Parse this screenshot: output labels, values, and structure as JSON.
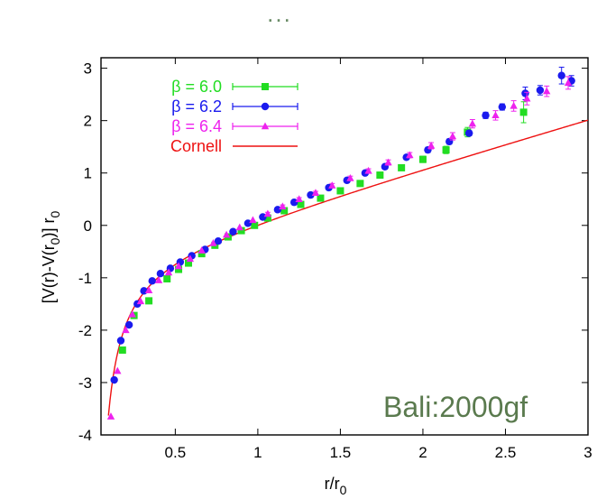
{
  "header": {
    "ellipsis": "..."
  },
  "watermark": "Bali:2000gf",
  "colors": {
    "beta60": "#22dd22",
    "beta62": "#1a1aee",
    "beta64": "#ee22ee",
    "cornell": "#ee1111",
    "watermark": "#5a7a4e"
  },
  "chart_data": {
    "type": "scatter",
    "title": "",
    "xlabel": "r/r",
    "xlabel_sub": "0",
    "ylabel_main": "[V(r)-V(r",
    "ylabel_sub": "0",
    "ylabel_tail": ")] r",
    "ylabel_tail_sub": "0",
    "xlim": [
      0.05,
      3.0
    ],
    "ylim": [
      -4,
      3.2
    ],
    "xticks": [
      0.5,
      1,
      1.5,
      2,
      2.5,
      3
    ],
    "xtick_labels": [
      "0.5",
      "1",
      "1.5",
      "2",
      "2.5",
      "3"
    ],
    "yticks": [
      -4,
      -3,
      -2,
      -1,
      0,
      1,
      2,
      3
    ],
    "ytick_labels": [
      "-4",
      "-3",
      "-2",
      "-1",
      "0",
      "1",
      "2",
      "3"
    ],
    "legend_position": "top-left",
    "series": [
      {
        "name": "β = 6.0",
        "marker": "square",
        "color": "#22dd22",
        "x": [
          0.18,
          0.25,
          0.34,
          0.45,
          0.52,
          0.58,
          0.66,
          0.74,
          0.82,
          0.9,
          0.98,
          1.06,
          1.16,
          1.26,
          1.38,
          1.5,
          1.62,
          1.74,
          1.87,
          2.0,
          2.14,
          2.27,
          2.61
        ],
        "y": [
          -2.38,
          -1.72,
          -1.44,
          -1.02,
          -0.84,
          -0.72,
          -0.54,
          -0.38,
          -0.22,
          -0.1,
          0.0,
          0.14,
          0.28,
          0.4,
          0.52,
          0.66,
          0.8,
          0.96,
          1.1,
          1.26,
          1.44,
          1.78,
          2.16
        ],
        "err": [
          0.02,
          0.02,
          0.02,
          0.02,
          0.02,
          0.02,
          0.02,
          0.02,
          0.02,
          0.02,
          0.02,
          0.03,
          0.03,
          0.03,
          0.03,
          0.04,
          0.04,
          0.05,
          0.05,
          0.06,
          0.07,
          0.09,
          0.2
        ]
      },
      {
        "name": "β = 6.2",
        "marker": "circle",
        "color": "#1a1aee",
        "x": [
          0.13,
          0.17,
          0.22,
          0.27,
          0.31,
          0.36,
          0.41,
          0.47,
          0.53,
          0.6,
          0.68,
          0.76,
          0.85,
          0.94,
          1.03,
          1.12,
          1.22,
          1.32,
          1.43,
          1.54,
          1.65,
          1.77,
          1.9,
          2.03,
          2.16,
          2.28,
          2.38,
          2.48,
          2.62,
          2.71,
          2.84,
          2.9
        ],
        "y": [
          -2.95,
          -2.2,
          -1.9,
          -1.5,
          -1.25,
          -1.06,
          -0.92,
          -0.82,
          -0.7,
          -0.58,
          -0.46,
          -0.3,
          -0.12,
          0.04,
          0.16,
          0.3,
          0.44,
          0.58,
          0.72,
          0.86,
          1.0,
          1.12,
          1.3,
          1.44,
          1.6,
          1.76,
          2.1,
          2.26,
          2.52,
          2.58,
          2.86,
          2.76
        ],
        "err": [
          0.02,
          0.02,
          0.02,
          0.02,
          0.02,
          0.02,
          0.02,
          0.02,
          0.02,
          0.02,
          0.02,
          0.02,
          0.02,
          0.02,
          0.02,
          0.02,
          0.02,
          0.03,
          0.03,
          0.03,
          0.03,
          0.04,
          0.04,
          0.05,
          0.05,
          0.05,
          0.06,
          0.06,
          0.12,
          0.09,
          0.16,
          0.1
        ]
      },
      {
        "name": "β = 6.4",
        "marker": "triangle",
        "color": "#ee22ee",
        "x": [
          0.11,
          0.15,
          0.2,
          0.24,
          0.29,
          0.34,
          0.4,
          0.46,
          0.52,
          0.59,
          0.66,
          0.73,
          0.81,
          0.89,
          0.97,
          1.06,
          1.15,
          1.25,
          1.35,
          1.45,
          1.56,
          1.67,
          1.79,
          1.92,
          2.05,
          2.18,
          2.3,
          2.44,
          2.55,
          2.63,
          2.75,
          2.88
        ],
        "y": [
          -3.65,
          -2.78,
          -2.0,
          -1.7,
          -1.45,
          -1.24,
          -1.05,
          -0.9,
          -0.78,
          -0.64,
          -0.48,
          -0.34,
          -0.18,
          -0.04,
          0.1,
          0.22,
          0.36,
          0.5,
          0.62,
          0.76,
          0.9,
          1.04,
          1.2,
          1.34,
          1.52,
          1.7,
          1.94,
          2.1,
          2.28,
          2.42,
          2.56,
          2.72
        ],
        "err": [
          0.02,
          0.02,
          0.02,
          0.02,
          0.02,
          0.02,
          0.02,
          0.02,
          0.02,
          0.02,
          0.02,
          0.02,
          0.02,
          0.02,
          0.02,
          0.03,
          0.03,
          0.03,
          0.03,
          0.04,
          0.04,
          0.04,
          0.05,
          0.05,
          0.06,
          0.07,
          0.08,
          0.09,
          0.1,
          0.12,
          0.1,
          0.12
        ]
      }
    ],
    "curve": {
      "name": "Cornell",
      "color": "#ee1111",
      "model": "a(x-1) - e(1/x - 1)",
      "a": 0.906,
      "e": 0.295
    }
  }
}
